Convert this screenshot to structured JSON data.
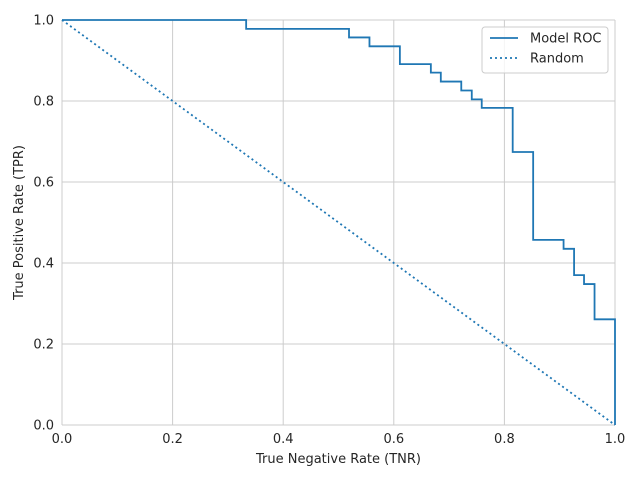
{
  "chart_data": {
    "type": "line",
    "xlabel": "True Negative Rate (TNR)",
    "ylabel": "True Positive Rate (TPR)",
    "xlim": [
      0,
      1
    ],
    "ylim": [
      0,
      1
    ],
    "xticks": [
      "0.0",
      "0.2",
      "0.4",
      "0.6",
      "0.8",
      "1.0"
    ],
    "yticks": [
      "0.0",
      "0.2",
      "0.4",
      "0.6",
      "0.8",
      "1.0"
    ],
    "grid": true,
    "legend_position": "top-right",
    "colors": {
      "series": "#1f77b4",
      "grid": "#cccccc",
      "text": "#262626",
      "background": "#ffffff"
    },
    "series": [
      {
        "name": "Model ROC",
        "style": "solid",
        "x": [
          0.0,
          0.333,
          0.333,
          0.519,
          0.519,
          0.556,
          0.556,
          0.611,
          0.611,
          0.667,
          0.667,
          0.685,
          0.685,
          0.722,
          0.722,
          0.741,
          0.741,
          0.759,
          0.759,
          0.815,
          0.815,
          0.852,
          0.852,
          0.907,
          0.907,
          0.926,
          0.926,
          0.944,
          0.944,
          0.963,
          0.963,
          1.0,
          1.0
        ],
        "y": [
          1.0,
          1.0,
          0.978,
          0.978,
          0.957,
          0.957,
          0.935,
          0.935,
          0.891,
          0.891,
          0.87,
          0.87,
          0.848,
          0.848,
          0.826,
          0.826,
          0.804,
          0.804,
          0.783,
          0.783,
          0.674,
          0.674,
          0.457,
          0.457,
          0.435,
          0.435,
          0.37,
          0.37,
          0.348,
          0.348,
          0.261,
          0.261,
          0.0
        ]
      },
      {
        "name": "Random",
        "style": "dotted",
        "x": [
          0,
          1
        ],
        "y": [
          1,
          0
        ]
      }
    ]
  }
}
